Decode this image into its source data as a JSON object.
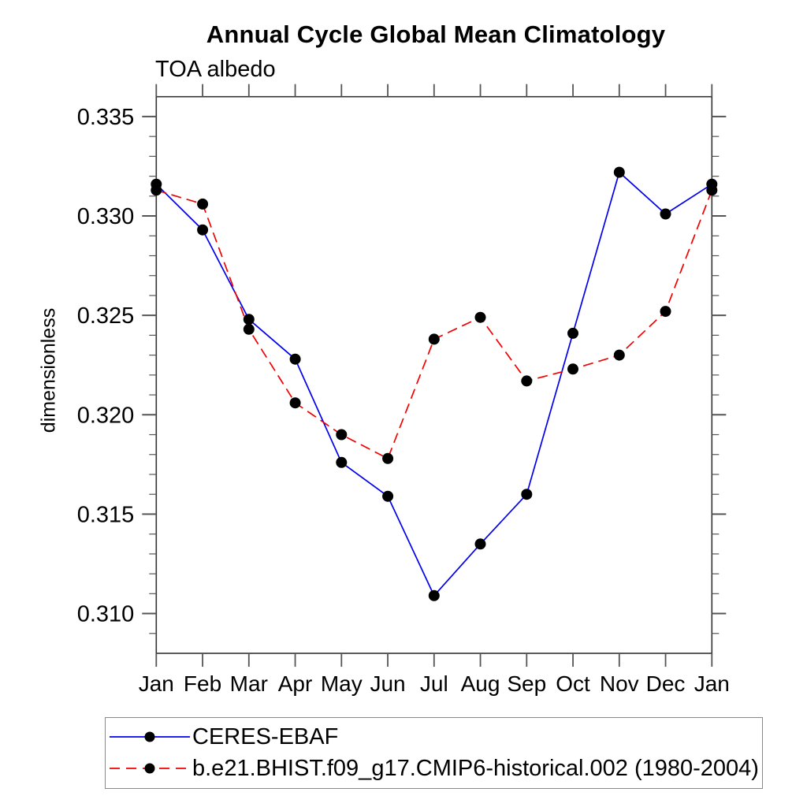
{
  "page": {
    "background_color": "#ffffff"
  },
  "chart_data": {
    "type": "line",
    "title": "Annual Cycle Global Mean Climatology",
    "subtitle": "TOA albedo",
    "ylabel": "dimensionless",
    "xlabel": "",
    "categories": [
      "Jan",
      "Feb",
      "Mar",
      "Apr",
      "May",
      "Jun",
      "Jul",
      "Aug",
      "Sep",
      "Oct",
      "Nov",
      "Dec",
      "Jan"
    ],
    "ylim": [
      0.308,
      0.336
    ],
    "ytick_major": [
      0.31,
      0.315,
      0.32,
      0.325,
      0.33,
      0.335
    ],
    "ytick_labels": [
      "0.310",
      "0.315",
      "0.320",
      "0.325",
      "0.330",
      "0.335"
    ],
    "ytick_minor_step": 0.001,
    "grid": false,
    "legend_position": "bottom-left-box",
    "marker": "filled-circle",
    "marker_color": "#000000",
    "axis_color": "#333333",
    "tick_color": "#555555",
    "series": [
      {
        "name": "CERES-EBAF",
        "color": "#0000ee",
        "style": "solid",
        "values": [
          0.3316,
          0.3293,
          0.3248,
          0.3228,
          0.3176,
          0.3159,
          0.3109,
          0.3135,
          0.316,
          0.3241,
          0.3322,
          0.3301,
          0.3316
        ]
      },
      {
        "name": "b.e21.BHIST.f09_g17.CMIP6-historical.002 (1980-2004)",
        "color": "#f30000",
        "style": "dashed",
        "values": [
          0.3313,
          0.3306,
          0.3243,
          0.3206,
          0.319,
          0.3178,
          0.3238,
          0.3249,
          0.3217,
          0.3223,
          0.323,
          0.3252,
          0.3313
        ]
      }
    ]
  }
}
